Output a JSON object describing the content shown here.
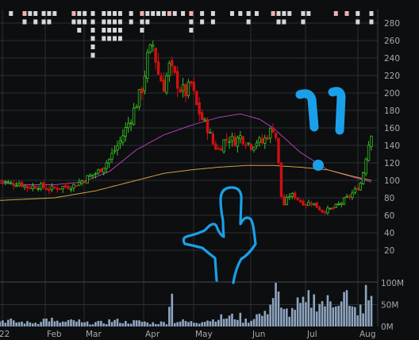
{
  "chart_data": {
    "type": "candlestick",
    "title": "",
    "price_axis": {
      "ylim": [
        0,
        290
      ],
      "ticks": [
        "20",
        "40",
        "60",
        "80",
        "100",
        "120",
        "140",
        "160",
        "180",
        "200",
        "220",
        "240",
        "260",
        "280"
      ]
    },
    "volume_axis": {
      "ylim": [
        0,
        110
      ],
      "ticks": [
        "0M",
        "50M",
        "100M"
      ]
    },
    "x_ticks": [
      "22",
      "Feb",
      "Mar",
      "Apr",
      "May",
      "Jun",
      "Jul",
      "Aug"
    ],
    "grid": true,
    "colors": {
      "background": "#0c0e10",
      "grid": "#2b2f33",
      "up": "#38c020",
      "down": "#d01010",
      "ma_short": "#b040b0",
      "ma_long": "#d4a040",
      "volume": "#8fa5c0",
      "annotation": "#1aa0e8",
      "marker": "#d8d8d8",
      "axis_text": "#a8a8a8"
    },
    "close_path": [
      [
        0,
        100
      ],
      [
        4,
        96
      ],
      [
        7,
        97
      ],
      [
        10,
        92
      ],
      [
        14,
        94
      ],
      [
        18,
        90
      ],
      [
        22,
        92
      ],
      [
        27,
        94
      ],
      [
        32,
        103
      ],
      [
        36,
        110
      ],
      [
        40,
        124
      ],
      [
        44,
        145
      ],
      [
        48,
        172
      ],
      [
        52,
        205
      ],
      [
        54,
        240
      ],
      [
        56,
        255
      ],
      [
        58,
        222
      ],
      [
        60,
        208
      ],
      [
        62,
        230
      ],
      [
        64,
        218
      ],
      [
        66,
        205
      ],
      [
        68,
        200
      ],
      [
        70,
        210
      ],
      [
        72,
        185
      ],
      [
        74,
        170
      ],
      [
        76,
        160
      ],
      [
        78,
        142
      ],
      [
        80,
        135
      ],
      [
        82,
        145
      ],
      [
        84,
        148
      ],
      [
        86,
        145
      ],
      [
        88,
        150
      ],
      [
        90,
        145
      ],
      [
        92,
        140
      ],
      [
        94,
        145
      ],
      [
        96,
        143
      ],
      [
        98,
        152
      ],
      [
        100,
        160
      ],
      [
        101,
        150
      ],
      [
        102,
        118
      ],
      [
        103,
        82
      ],
      [
        104,
        72
      ],
      [
        106,
        83
      ],
      [
        108,
        82
      ],
      [
        110,
        76
      ],
      [
        112,
        73
      ],
      [
        114,
        75
      ],
      [
        116,
        70
      ],
      [
        118,
        65
      ],
      [
        120,
        66
      ],
      [
        122,
        68
      ],
      [
        124,
        72
      ],
      [
        126,
        77
      ],
      [
        128,
        82
      ],
      [
        130,
        88
      ],
      [
        132,
        97
      ],
      [
        133,
        110
      ],
      [
        134,
        128
      ],
      [
        135,
        142
      ],
      [
        136,
        156
      ]
    ],
    "ma_short": [
      [
        0,
        97
      ],
      [
        10,
        95
      ],
      [
        20,
        95
      ],
      [
        30,
        98
      ],
      [
        40,
        110
      ],
      [
        50,
        135
      ],
      [
        60,
        152
      ],
      [
        70,
        163
      ],
      [
        80,
        172
      ],
      [
        88,
        176
      ],
      [
        95,
        170
      ],
      [
        100,
        160
      ],
      [
        110,
        132
      ],
      [
        120,
        112
      ],
      [
        130,
        103
      ],
      [
        136,
        98
      ]
    ],
    "ma_long": [
      [
        0,
        77
      ],
      [
        20,
        80
      ],
      [
        35,
        88
      ],
      [
        50,
        100
      ],
      [
        60,
        108
      ],
      [
        70,
        112
      ],
      [
        80,
        115
      ],
      [
        90,
        117
      ],
      [
        100,
        117
      ],
      [
        110,
        115
      ],
      [
        120,
        112
      ],
      [
        130,
        104
      ],
      [
        136,
        100
      ]
    ],
    "volume_pattern": [
      14,
      10,
      9,
      16,
      10,
      12,
      8,
      9,
      13,
      10,
      11,
      8,
      9,
      12,
      10,
      15,
      20,
      22,
      14,
      26,
      40,
      35,
      48,
      60,
      54,
      70,
      38,
      30
    ],
    "volume_spikes": [
      [
        101,
        100
      ],
      [
        102,
        80
      ],
      [
        100,
        65
      ],
      [
        99,
        50
      ],
      [
        104,
        40
      ],
      [
        123,
        46
      ],
      [
        134,
        95
      ],
      [
        135,
        60
      ],
      [
        136,
        70
      ],
      [
        63,
        75
      ],
      [
        62,
        45
      ]
    ],
    "annotations": [
      {
        "type": "stroke",
        "shape": "tally-left"
      },
      {
        "type": "stroke",
        "shape": "tally-right"
      },
      {
        "type": "dot",
        "shape": "dot"
      },
      {
        "type": "stroke",
        "shape": "hand-gesture"
      }
    ],
    "signal_marker_columns": [
      {
        "x": 4,
        "rows": 1,
        "tint": "light"
      },
      {
        "x": 9,
        "rows": 2,
        "tint": "pink"
      },
      {
        "x": 11,
        "rows": 1,
        "tint": "light"
      },
      {
        "x": 13,
        "rows": 2,
        "tint": "light"
      },
      {
        "x": 16,
        "rows": 2,
        "tint": "light"
      },
      {
        "x": 18,
        "rows": 2,
        "tint": "light"
      },
      {
        "x": 20,
        "rows": 1,
        "tint": "light"
      },
      {
        "x": 27,
        "rows": 2,
        "tint": "pink"
      },
      {
        "x": 29,
        "rows": 3,
        "tint": "light"
      },
      {
        "x": 31,
        "rows": 2,
        "tint": "light"
      },
      {
        "x": 34,
        "rows": 6,
        "tint": "light"
      },
      {
        "x": 38,
        "rows": 4,
        "tint": "light"
      },
      {
        "x": 40,
        "rows": 4,
        "tint": "light"
      },
      {
        "x": 42,
        "rows": 4,
        "tint": "light"
      },
      {
        "x": 44,
        "rows": 4,
        "tint": "light"
      },
      {
        "x": 48,
        "rows": 2,
        "tint": "light"
      },
      {
        "x": 52,
        "rows": 3,
        "tint": "pink"
      },
      {
        "x": 54,
        "rows": 2,
        "tint": "light"
      },
      {
        "x": 56,
        "rows": 1,
        "tint": "light"
      },
      {
        "x": 58,
        "rows": 1,
        "tint": "light"
      },
      {
        "x": 60,
        "rows": 1,
        "tint": "light"
      },
      {
        "x": 62,
        "rows": 1,
        "tint": "pink"
      },
      {
        "x": 64,
        "rows": 1,
        "tint": "light"
      },
      {
        "x": 67,
        "rows": 1,
        "tint": "light"
      },
      {
        "x": 70,
        "rows": 3,
        "tint": "pink"
      },
      {
        "x": 74,
        "rows": 2,
        "tint": "light"
      },
      {
        "x": 78,
        "rows": 2,
        "tint": "light"
      },
      {
        "x": 85,
        "rows": 1,
        "tint": "light"
      },
      {
        "x": 88,
        "rows": 1,
        "tint": "light"
      },
      {
        "x": 91,
        "rows": 2,
        "tint": "light"
      },
      {
        "x": 94,
        "rows": 1,
        "tint": "light"
      },
      {
        "x": 100,
        "rows": 1,
        "tint": "pink"
      },
      {
        "x": 102,
        "rows": 2,
        "tint": "light"
      },
      {
        "x": 104,
        "rows": 2,
        "tint": "light"
      },
      {
        "x": 106,
        "rows": 1,
        "tint": "light"
      },
      {
        "x": 111,
        "rows": 2,
        "tint": "light"
      },
      {
        "x": 113,
        "rows": 1,
        "tint": "light"
      },
      {
        "x": 123,
        "rows": 1,
        "tint": "pink"
      },
      {
        "x": 127,
        "rows": 1,
        "tint": "pink"
      },
      {
        "x": 131,
        "rows": 2,
        "tint": "light"
      },
      {
        "x": 136,
        "rows": 2,
        "tint": "light"
      }
    ]
  }
}
